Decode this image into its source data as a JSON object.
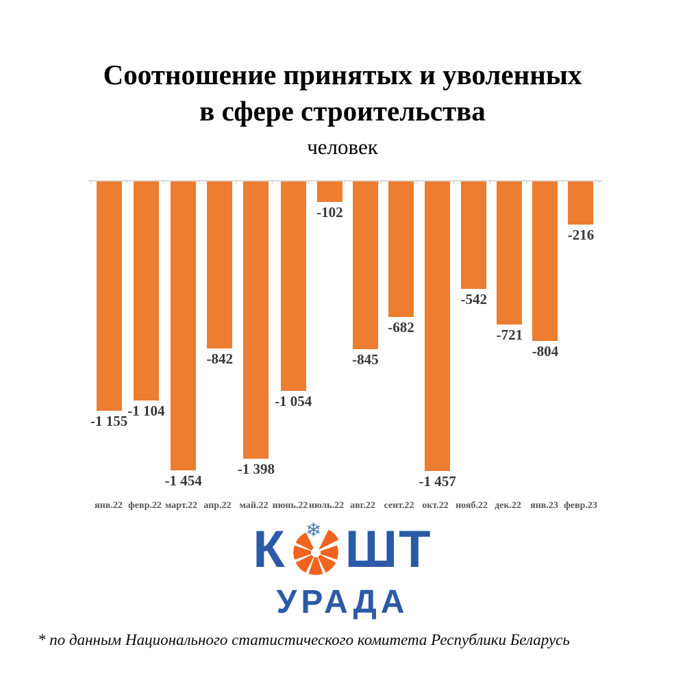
{
  "title": {
    "line1": "Соотношение принятых и уволенных",
    "line2": "в сфере строительства",
    "subtitle": "человек"
  },
  "chart_data": {
    "type": "bar",
    "title": "Соотношение принятых и уволенных в сфере строительства",
    "ylabel": "человек",
    "xlabel": "",
    "categories": [
      "янв.22",
      "февр.22",
      "март.22",
      "апр.22",
      "май.22",
      "июнь.22",
      "июль.22",
      "авг.22",
      "сент.22",
      "окт.22",
      "нояб.22",
      "дек.22",
      "янв.23",
      "февр.23"
    ],
    "values": [
      -1155,
      -1104,
      -1454,
      -842,
      -1398,
      -1054,
      -102,
      -845,
      -682,
      -1457,
      -542,
      -721,
      -804,
      -216
    ],
    "value_labels": [
      "-1 155",
      "-1 104",
      "-1 454",
      "-842",
      "-1 398",
      "-1 054",
      "-102",
      "-845",
      "-682",
      "-1 457",
      "-542",
      "-721",
      "-804",
      "-216"
    ],
    "ylim": [
      -1500,
      0
    ],
    "grid": false,
    "legend": false,
    "bar_color": "#ed7d31",
    "axis_color": "#d9d9d9",
    "value_label_color": "#383838",
    "category_label_color": "#595959"
  },
  "logo": {
    "word_part1": "К",
    "word_part2": "ШТ",
    "word_line2": "УРАДА",
    "blue": "#2b5aa6",
    "orange": "#f0641f",
    "snowflake_icon": "snowflake"
  },
  "footnote": "* по данным Национального статистического комитета Республики Беларусь"
}
